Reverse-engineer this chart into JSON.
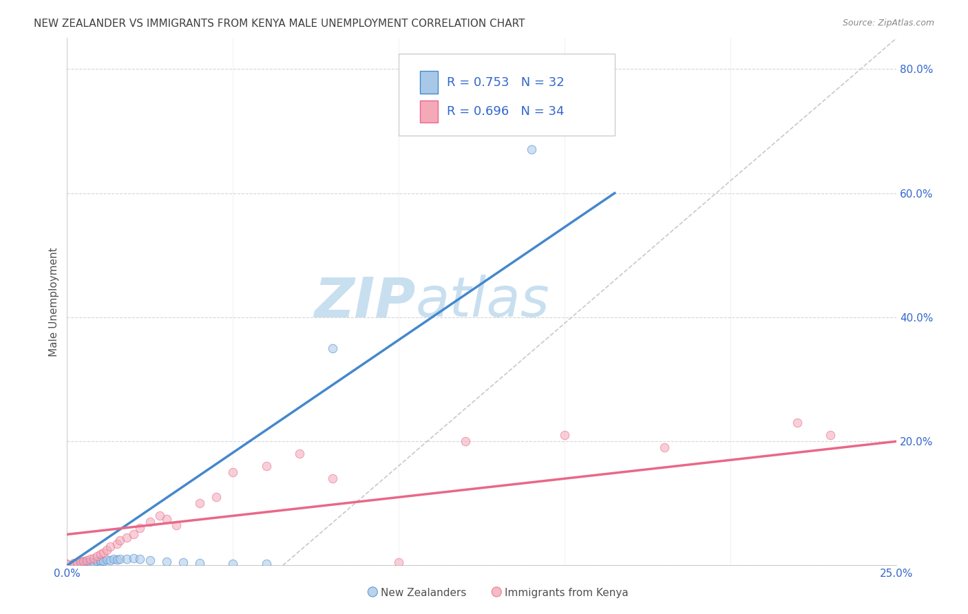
{
  "title": "NEW ZEALANDER VS IMMIGRANTS FROM KENYA MALE UNEMPLOYMENT CORRELATION CHART",
  "source": "Source: ZipAtlas.com",
  "ylabel": "Male Unemployment",
  "xlim": [
    0.0,
    0.25
  ],
  "ylim": [
    0.0,
    0.85
  ],
  "ytick_values": [
    0.0,
    0.2,
    0.4,
    0.6,
    0.8
  ],
  "xtick_values": [
    0.0,
    0.05,
    0.1,
    0.15,
    0.2,
    0.25
  ],
  "grid_color": "#cccccc",
  "background_color": "#ffffff",
  "title_color": "#404040",
  "title_fontsize": 11,
  "source_fontsize": 9,
  "watermark_zip": "ZIP",
  "watermark_atlas": "atlas",
  "watermark_color_zip": "#c8dff0",
  "watermark_color_atlas": "#c8dff0",
  "legend_R1": "R = 0.753",
  "legend_N1": "N = 32",
  "legend_R2": "R = 0.696",
  "legend_N2": "N = 34",
  "legend_label1": "New Zealanders",
  "legend_label2": "Immigrants from Kenya",
  "color_blue": "#a8c8e8",
  "color_pink": "#f4a8b8",
  "color_blue_line": "#4488cc",
  "color_pink_line": "#e86888",
  "color_RN": "#3366cc",
  "nz_x": [
    0.0,
    0.002,
    0.003,
    0.003,
    0.004,
    0.004,
    0.005,
    0.005,
    0.006,
    0.007,
    0.007,
    0.008,
    0.009,
    0.01,
    0.01,
    0.011,
    0.012,
    0.013,
    0.014,
    0.015,
    0.016,
    0.018,
    0.02,
    0.022,
    0.025,
    0.03,
    0.035,
    0.04,
    0.05,
    0.06,
    0.08,
    0.14
  ],
  "nz_y": [
    0.002,
    0.003,
    0.002,
    0.004,
    0.003,
    0.005,
    0.004,
    0.006,
    0.005,
    0.004,
    0.006,
    0.005,
    0.007,
    0.006,
    0.008,
    0.007,
    0.009,
    0.008,
    0.01,
    0.009,
    0.011,
    0.01,
    0.012,
    0.01,
    0.008,
    0.006,
    0.005,
    0.004,
    0.003,
    0.003,
    0.35,
    0.67
  ],
  "kenya_x": [
    0.0,
    0.002,
    0.003,
    0.004,
    0.005,
    0.006,
    0.007,
    0.008,
    0.009,
    0.01,
    0.011,
    0.012,
    0.013,
    0.015,
    0.016,
    0.018,
    0.02,
    0.022,
    0.025,
    0.028,
    0.03,
    0.033,
    0.04,
    0.045,
    0.05,
    0.06,
    0.07,
    0.08,
    0.1,
    0.12,
    0.15,
    0.18,
    0.22,
    0.23
  ],
  "kenya_y": [
    0.003,
    0.004,
    0.005,
    0.006,
    0.007,
    0.008,
    0.01,
    0.012,
    0.015,
    0.018,
    0.02,
    0.025,
    0.03,
    0.035,
    0.04,
    0.045,
    0.05,
    0.06,
    0.07,
    0.08,
    0.075,
    0.065,
    0.1,
    0.11,
    0.15,
    0.16,
    0.18,
    0.14,
    0.005,
    0.2,
    0.21,
    0.19,
    0.23,
    0.21
  ],
  "diag_line_x": [
    0.065,
    0.25
  ],
  "diag_line_y": [
    0.0,
    0.85
  ],
  "diag_line_color": "#bbbbbb",
  "nz_line_x": [
    0.0,
    0.165
  ],
  "nz_line_y": [
    0.0,
    0.6
  ],
  "kenya_line_x": [
    0.0,
    0.25
  ],
  "kenya_line_y": [
    0.05,
    0.2
  ],
  "point_size": 80,
  "point_alpha": 0.55
}
